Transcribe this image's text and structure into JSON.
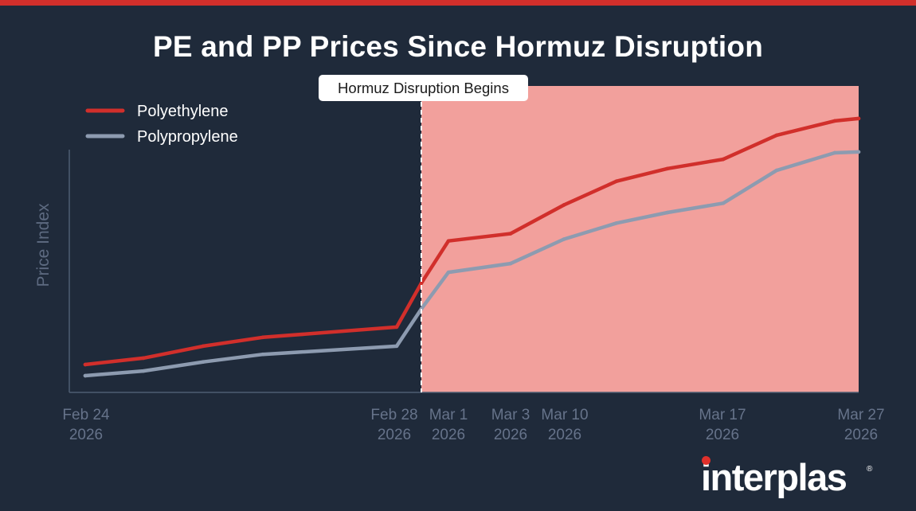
{
  "chart_data": {
    "type": "line",
    "title": "PE and PP Prices Since Hormuz Disruption",
    "ylabel": "Price Index",
    "xlabel": "",
    "x_ticks": [
      {
        "date": "2026-02-24",
        "line1": "Feb 24",
        "line2": "2026"
      },
      {
        "date": "2026-02-28",
        "line1": "Feb 28",
        "line2": "2026"
      },
      {
        "date": "2026-03-01",
        "line1": "Mar 1",
        "line2": "2026"
      },
      {
        "date": "2026-03-03",
        "line1": "Mar 3",
        "line2": "2026"
      },
      {
        "date": "2026-03-10",
        "line1": "Mar 10",
        "line2": "2026"
      },
      {
        "date": "2026-03-17",
        "line1": "Mar 17",
        "line2": "2026"
      },
      {
        "date": "2026-03-27",
        "line1": "Mar 27",
        "line2": "2026"
      }
    ],
    "ylim": [
      0,
      100
    ],
    "grid": false,
    "legend_position": "top-left",
    "series": [
      {
        "name": "Polyethylene",
        "color": "#d12f2b",
        "points": [
          [
            "2026-02-24",
            9.5
          ],
          [
            "2026-02-25",
            11.7
          ],
          [
            "2026-02-26",
            15.8
          ],
          [
            "2026-02-27",
            18.8
          ],
          [
            "2026-02-28",
            22.3
          ],
          [
            "2026-03-01",
            37.3
          ],
          [
            "2026-03-02",
            51.7
          ],
          [
            "2026-03-03",
            54.2
          ],
          [
            "2026-03-05",
            64.0
          ],
          [
            "2026-03-08",
            72.1
          ],
          [
            "2026-03-11",
            76.4
          ],
          [
            "2026-03-14",
            79.6
          ],
          [
            "2026-03-17",
            87.8
          ],
          [
            "2026-03-20",
            92.7
          ],
          [
            "2026-03-27",
            93.5
          ]
        ]
      },
      {
        "name": "Polypropylene",
        "color": "#8d9bb0",
        "points": [
          [
            "2026-02-24",
            5.7
          ],
          [
            "2026-02-25",
            7.3
          ],
          [
            "2026-02-26",
            10.4
          ],
          [
            "2026-02-27",
            13.0
          ],
          [
            "2026-02-28",
            15.8
          ],
          [
            "2026-03-01",
            28.5
          ],
          [
            "2026-03-02",
            41.0
          ],
          [
            "2026-03-03",
            44.0
          ],
          [
            "2026-03-05",
            52.3
          ],
          [
            "2026-03-08",
            57.8
          ],
          [
            "2026-03-11",
            61.4
          ],
          [
            "2026-03-14",
            64.6
          ],
          [
            "2026-03-17",
            75.8
          ],
          [
            "2026-03-20",
            81.8
          ],
          [
            "2026-03-27",
            82.1
          ]
        ]
      }
    ],
    "event": {
      "date": "2026-03-01",
      "label": "Hormuz Disruption Begins",
      "shaded_after": true,
      "shade_color": "#f2a09c"
    }
  },
  "branding": {
    "logo_text": "interplas",
    "accent_color": "#d12f2b"
  }
}
